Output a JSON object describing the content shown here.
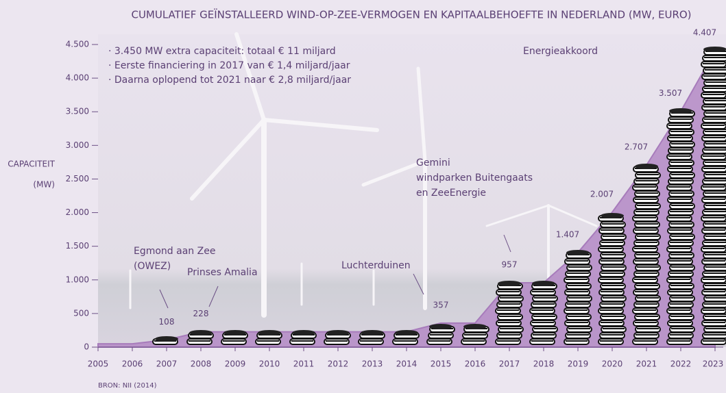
{
  "chart_data": {
    "type": "area",
    "title": "CUMULATIEF GEÏNSTALLEERD WIND-OP-ZEE-VERMOGEN EN KAPITAALBEHOEFTE IN NEDERLAND (MW, EURO)",
    "y_label": [
      "CAPACITEIT",
      "(MW)"
    ],
    "source": "BRON: NII (2014)",
    "bullets": [
      "· 3.450 MW extra capaciteit: totaal € 11 miljard",
      "· Eerste financiering in 2017 van € 1,4 miljard/jaar",
      "· Daarna oplopend tot 2021 naar € 2,8 miljard/jaar"
    ],
    "annotations": [
      "Egmond aan Zee",
      "(OWEZ)",
      "Prinses Amalia",
      "Luchterduinen",
      "Gemini",
      "windparken Buitengaats",
      "en ZeeEnergie",
      "Energieakkoord"
    ],
    "categories": [
      "2005",
      "2006",
      "2007",
      "2008",
      "2009",
      "2010",
      "2011",
      "2012",
      "2013",
      "2014",
      "2015",
      "2016",
      "2017",
      "2018",
      "2019",
      "2020",
      "2021",
      "2022",
      "2023"
    ],
    "values": [
      50,
      50,
      108,
      228,
      228,
      228,
      228,
      228,
      228,
      228,
      357,
      357,
      957,
      957,
      1407,
      2007,
      2707,
      3507,
      4407
    ],
    "value_labels": [
      null,
      null,
      "108",
      "228",
      null,
      null,
      null,
      null,
      null,
      null,
      "357",
      null,
      "957",
      null,
      "1.407",
      "2.007",
      "2.707",
      "3.507",
      "4.407"
    ],
    "color": "#b48ac6",
    "ylim": [
      0,
      4500
    ],
    "yticks": [
      0,
      500,
      {
        "value": 1000,
        "label": "1.000"
      },
      {
        "value": 1500,
        "label": "1.500"
      },
      {
        "value": 2000,
        "label": "2.000"
      },
      {
        "value": 2500,
        "label": "2.500"
      },
      {
        "value": 3000,
        "label": "3.000"
      },
      {
        "value": 3500,
        "label": "3.500"
      },
      {
        "value": 4000,
        "label": "4.000"
      },
      {
        "value": 4500,
        "label": "4.500"
      }
    ]
  }
}
